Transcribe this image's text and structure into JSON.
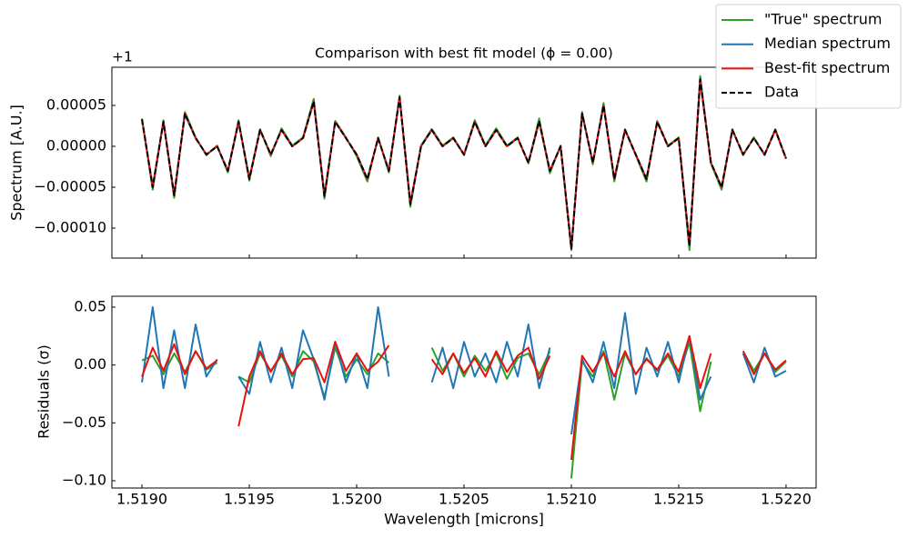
{
  "chart_data": [
    {
      "type": "line",
      "title": "Comparison with best fit model (ϕ = 0.00)",
      "ylabel": "Spectrum [A.U.]",
      "y_offset_label": "+1",
      "x": [
        1.519,
        1.51905,
        1.5191,
        1.51915,
        1.5192,
        1.51925,
        1.5193,
        1.51935,
        1.5194,
        1.51945,
        1.5195,
        1.51955,
        1.5196,
        1.51965,
        1.5197,
        1.51975,
        1.5198,
        1.51985,
        1.5199,
        1.51995,
        1.52,
        1.52005,
        1.5201,
        1.52015,
        1.5202,
        1.52025,
        1.5203,
        1.52035,
        1.5204,
        1.52045,
        1.5205,
        1.52055,
        1.5206,
        1.52065,
        1.5207,
        1.52075,
        1.5208,
        1.52085,
        1.5209,
        1.52095,
        1.521,
        1.52105,
        1.5211,
        1.52115,
        1.5212,
        1.52125,
        1.5213,
        1.52135,
        1.5214,
        1.52145,
        1.5215,
        1.52155,
        1.5216,
        1.52165,
        1.5217,
        1.52175,
        1.5218,
        1.52185,
        1.5219,
        1.52195,
        1.522
      ],
      "xlim": [
        1.51886,
        1.52214
      ],
      "xticks": [
        {
          "value": 1.519,
          "label": "1.5190"
        },
        {
          "value": 1.5195,
          "label": "1.5195"
        },
        {
          "value": 1.52,
          "label": "1.5200"
        },
        {
          "value": 1.5205,
          "label": "1.5205"
        },
        {
          "value": 1.521,
          "label": "1.5210"
        },
        {
          "value": 1.5215,
          "label": "1.5215"
        },
        {
          "value": 1.522,
          "label": "1.5220"
        }
      ],
      "ylim": [
        -0.0001367,
        9.67e-05
      ],
      "yticks": [
        {
          "value": 5e-05,
          "label": "0.00005"
        },
        {
          "value": 0,
          "label": "0.00000"
        },
        {
          "value": -5e-05,
          "label": "−0.00005"
        },
        {
          "value": -0.0001,
          "label": "−0.00010"
        }
      ],
      "legend": "upper right",
      "series": [
        {
          "name": "\"True\" spectrum",
          "color": "#2ca02c",
          "dash": false,
          "values": [
            3.4e-05,
            -5.3e-05,
            3.2e-05,
            -6.3e-05,
            4.2e-05,
            1.1e-05,
            -1.1e-05,
            1e-06,
            -3.2e-05,
            3.2e-05,
            -4.2e-05,
            2.1e-05,
            -1.2e-05,
            2.2e-05,
            1e-06,
            1.1e-05,
            5.8e-05,
            -6.4e-05,
            3.1e-05,
            1.1e-05,
            -1.2e-05,
            -4.3e-05,
            1.1e-05,
            -3.2e-05,
            6.2e-05,
            -7.4e-05,
            1e-06,
            2.1e-05,
            1e-06,
            1.1e-05,
            -1.1e-05,
            3.2e-05,
            1e-06,
            2.2e-05,
            1e-06,
            1.1e-05,
            -2.1e-05,
            3.4e-05,
            -3.3e-05,
            1e-06,
            -0.000127,
            4.2e-05,
            -2.2e-05,
            5.3e-05,
            -4.3e-05,
            2.1e-05,
            -1.1e-05,
            -4.3e-05,
            3.1e-05,
            1e-06,
            1.1e-05,
            -0.000127,
            8.6e-05,
            -2.1e-05,
            -5.3e-05,
            2.1e-05,
            -1.1e-05,
            1.1e-05,
            -1.1e-05,
            2.1e-05,
            -1.5e-05
          ]
        },
        {
          "name": "Median spectrum",
          "color": "#1f77b4",
          "dash": false,
          "values": [
            3.3e-05,
            -4.9e-05,
            3e-05,
            -5.9e-05,
            3.9e-05,
            1e-05,
            -1e-05,
            0.0,
            -3e-05,
            3e-05,
            -3.9e-05,
            2e-05,
            -1e-05,
            2e-05,
            0.0,
            1e-05,
            5.4e-05,
            -6e-05,
            3e-05,
            1e-05,
            -1e-05,
            -4e-05,
            1e-05,
            -3e-05,
            6e-05,
            -7e-05,
            0.0,
            2e-05,
            0.0,
            1e-05,
            -1e-05,
            3e-05,
            0.0,
            2e-05,
            0.0,
            1e-05,
            -2e-05,
            3e-05,
            -3e-05,
            0.0,
            -0.000124,
            4e-05,
            -2e-05,
            5e-05,
            -4e-05,
            2e-05,
            -1e-05,
            -4e-05,
            3e-05,
            0.0,
            1e-05,
            -0.000121,
            8.3e-05,
            -2e-05,
            -5e-05,
            2e-05,
            -1e-05,
            1e-05,
            -1e-05,
            2e-05,
            -1.5e-05
          ]
        },
        {
          "name": "Best-fit spectrum",
          "color": "#e8110f",
          "dash": false,
          "values": [
            3.3e-05,
            -5e-05,
            3e-05,
            -6e-05,
            4e-05,
            1e-05,
            -1e-05,
            0.0,
            -3e-05,
            3e-05,
            -4e-05,
            2e-05,
            -1e-05,
            2e-05,
            0.0,
            1e-05,
            5.5e-05,
            -6e-05,
            3e-05,
            1e-05,
            -1e-05,
            -4e-05,
            1e-05,
            -3e-05,
            6e-05,
            -7e-05,
            0.0,
            2e-05,
            0.0,
            1e-05,
            -1e-05,
            3e-05,
            0.0,
            2e-05,
            0.0,
            1e-05,
            -2e-05,
            3e-05,
            -3e-05,
            0.0,
            -0.000125,
            4e-05,
            -2e-05,
            5e-05,
            -4e-05,
            2e-05,
            -1e-05,
            -4e-05,
            3e-05,
            0.0,
            1e-05,
            -0.00012,
            8e-05,
            -2e-05,
            -5e-05,
            2e-05,
            -1e-05,
            1e-05,
            -1e-05,
            2e-05,
            -1.5e-05
          ]
        },
        {
          "name": "Data",
          "color": "#000000",
          "dash": true,
          "values": [
            3.3e-05,
            -5e-05,
            3e-05,
            -6e-05,
            4e-05,
            1e-05,
            -1e-05,
            0.0,
            -3e-05,
            3e-05,
            -4e-05,
            2e-05,
            -1e-05,
            2e-05,
            0.0,
            1e-05,
            5.5e-05,
            -6.1e-05,
            3e-05,
            1e-05,
            -1e-05,
            -4e-05,
            1e-05,
            -3e-05,
            6e-05,
            -7.1e-05,
            0.0,
            2e-05,
            0.0,
            1e-05,
            -1e-05,
            3e-05,
            0.0,
            2e-05,
            0.0,
            1e-05,
            -2e-05,
            3.1e-05,
            -3e-05,
            0.0,
            -0.000125,
            4e-05,
            -2e-05,
            5e-05,
            -4e-05,
            2e-05,
            -1e-05,
            -4e-05,
            3e-05,
            0.0,
            1e-05,
            -0.000122,
            8.2e-05,
            -2e-05,
            -5e-05,
            2e-05,
            -1e-05,
            1e-05,
            -1e-05,
            2e-05,
            -1.5e-05
          ]
        }
      ]
    },
    {
      "type": "line",
      "ylabel": "Residuals (σ)",
      "xlabel": "Wavelength [microns]",
      "x": [
        1.519,
        1.51905,
        1.5191,
        1.51915,
        1.5192,
        1.51925,
        1.5193,
        1.51935,
        1.5194,
        1.51945,
        1.5195,
        1.51955,
        1.5196,
        1.51965,
        1.5197,
        1.51975,
        1.5198,
        1.51985,
        1.5199,
        1.51995,
        1.52,
        1.52005,
        1.5201,
        1.52015,
        1.5202,
        1.52025,
        1.5203,
        1.52035,
        1.5204,
        1.52045,
        1.5205,
        1.52055,
        1.5206,
        1.52065,
        1.5207,
        1.52075,
        1.5208,
        1.52085,
        1.5209,
        1.52095,
        1.521,
        1.52105,
        1.5211,
        1.52115,
        1.5212,
        1.52125,
        1.5213,
        1.52135,
        1.5214,
        1.52145,
        1.5215,
        1.52155,
        1.5216,
        1.52165,
        1.5217,
        1.52175,
        1.5218,
        1.52185,
        1.5219,
        1.52195,
        1.522
      ],
      "xlim": [
        1.51886,
        1.52214
      ],
      "xticks": [
        {
          "value": 1.519,
          "label": "1.5190"
        },
        {
          "value": 1.5195,
          "label": "1.5195"
        },
        {
          "value": 1.52,
          "label": "1.5200"
        },
        {
          "value": 1.5205,
          "label": "1.5205"
        },
        {
          "value": 1.521,
          "label": "1.5210"
        },
        {
          "value": 1.5215,
          "label": "1.5215"
        },
        {
          "value": 1.522,
          "label": "1.5220"
        }
      ],
      "ylim": [
        -0.1063,
        0.0594
      ],
      "yticks": [
        {
          "value": 0.05,
          "label": "0.05"
        },
        {
          "value": 0,
          "label": "0.00"
        },
        {
          "value": -0.05,
          "label": "−0.05"
        },
        {
          "value": -0.1,
          "label": "−0.10"
        }
      ],
      "series": [
        {
          "color": "#2ca02c",
          "values": [
            0.004,
            0.008,
            -0.008,
            0.01,
            -0.006,
            0.012,
            -0.004,
            0.002,
            null,
            -0.01,
            -0.015,
            0.01,
            -0.005,
            0.008,
            -0.01,
            0.012,
            0.003,
            -0.028,
            0.015,
            -0.01,
            0.005,
            -0.008,
            0.01,
            0.002,
            null,
            null,
            null,
            0.015,
            -0.005,
            0.01,
            -0.01,
            0.008,
            -0.005,
            0.01,
            -0.012,
            0.006,
            0.01,
            -0.008,
            0.012,
            null,
            -0.098,
            0.003,
            -0.01,
            0.012,
            -0.03,
            0.01,
            -0.008,
            0.006,
            -0.005,
            0.008,
            -0.01,
            0.02,
            -0.04,
            0.003,
            null,
            null,
            0.012,
            -0.005,
            0.01,
            -0.006,
            0.003
          ]
        },
        {
          "color": "#1f77b4",
          "values": [
            -0.015,
            0.05,
            -0.02,
            0.03,
            -0.02,
            0.035,
            -0.01,
            0.005,
            null,
            -0.01,
            -0.025,
            0.02,
            -0.015,
            0.015,
            -0.02,
            0.03,
            0.005,
            -0.03,
            0.02,
            -0.015,
            0.01,
            -0.02,
            0.05,
            -0.01,
            null,
            null,
            null,
            -0.015,
            0.015,
            -0.02,
            0.02,
            -0.01,
            0.01,
            -0.015,
            0.02,
            -0.01,
            0.035,
            -0.02,
            0.015,
            null,
            -0.06,
            0.005,
            -0.015,
            0.02,
            -0.02,
            0.045,
            -0.025,
            0.015,
            -0.01,
            0.02,
            -0.015,
            0.025,
            -0.03,
            -0.01,
            null,
            null,
            0.01,
            -0.015,
            0.015,
            -0.01,
            -0.005
          ]
        },
        {
          "color": "#e8110f",
          "values": [
            -0.01,
            0.015,
            -0.005,
            0.018,
            -0.008,
            0.012,
            -0.003,
            0.004,
            null,
            -0.053,
            -0.01,
            0.012,
            -0.006,
            0.01,
            -0.008,
            0.005,
            0.006,
            -0.015,
            0.02,
            -0.005,
            0.01,
            -0.005,
            0.003,
            0.017,
            null,
            null,
            null,
            0.005,
            -0.008,
            0.01,
            -0.007,
            0.006,
            -0.01,
            0.012,
            -0.006,
            0.008,
            0.015,
            -0.012,
            0.008,
            null,
            -0.082,
            0.008,
            -0.006,
            0.01,
            -0.01,
            0.012,
            -0.008,
            0.005,
            -0.004,
            0.01,
            -0.006,
            0.025,
            -0.02,
            0.01,
            null,
            null,
            0.012,
            -0.008,
            0.01,
            -0.004,
            0.004
          ]
        }
      ]
    }
  ]
}
